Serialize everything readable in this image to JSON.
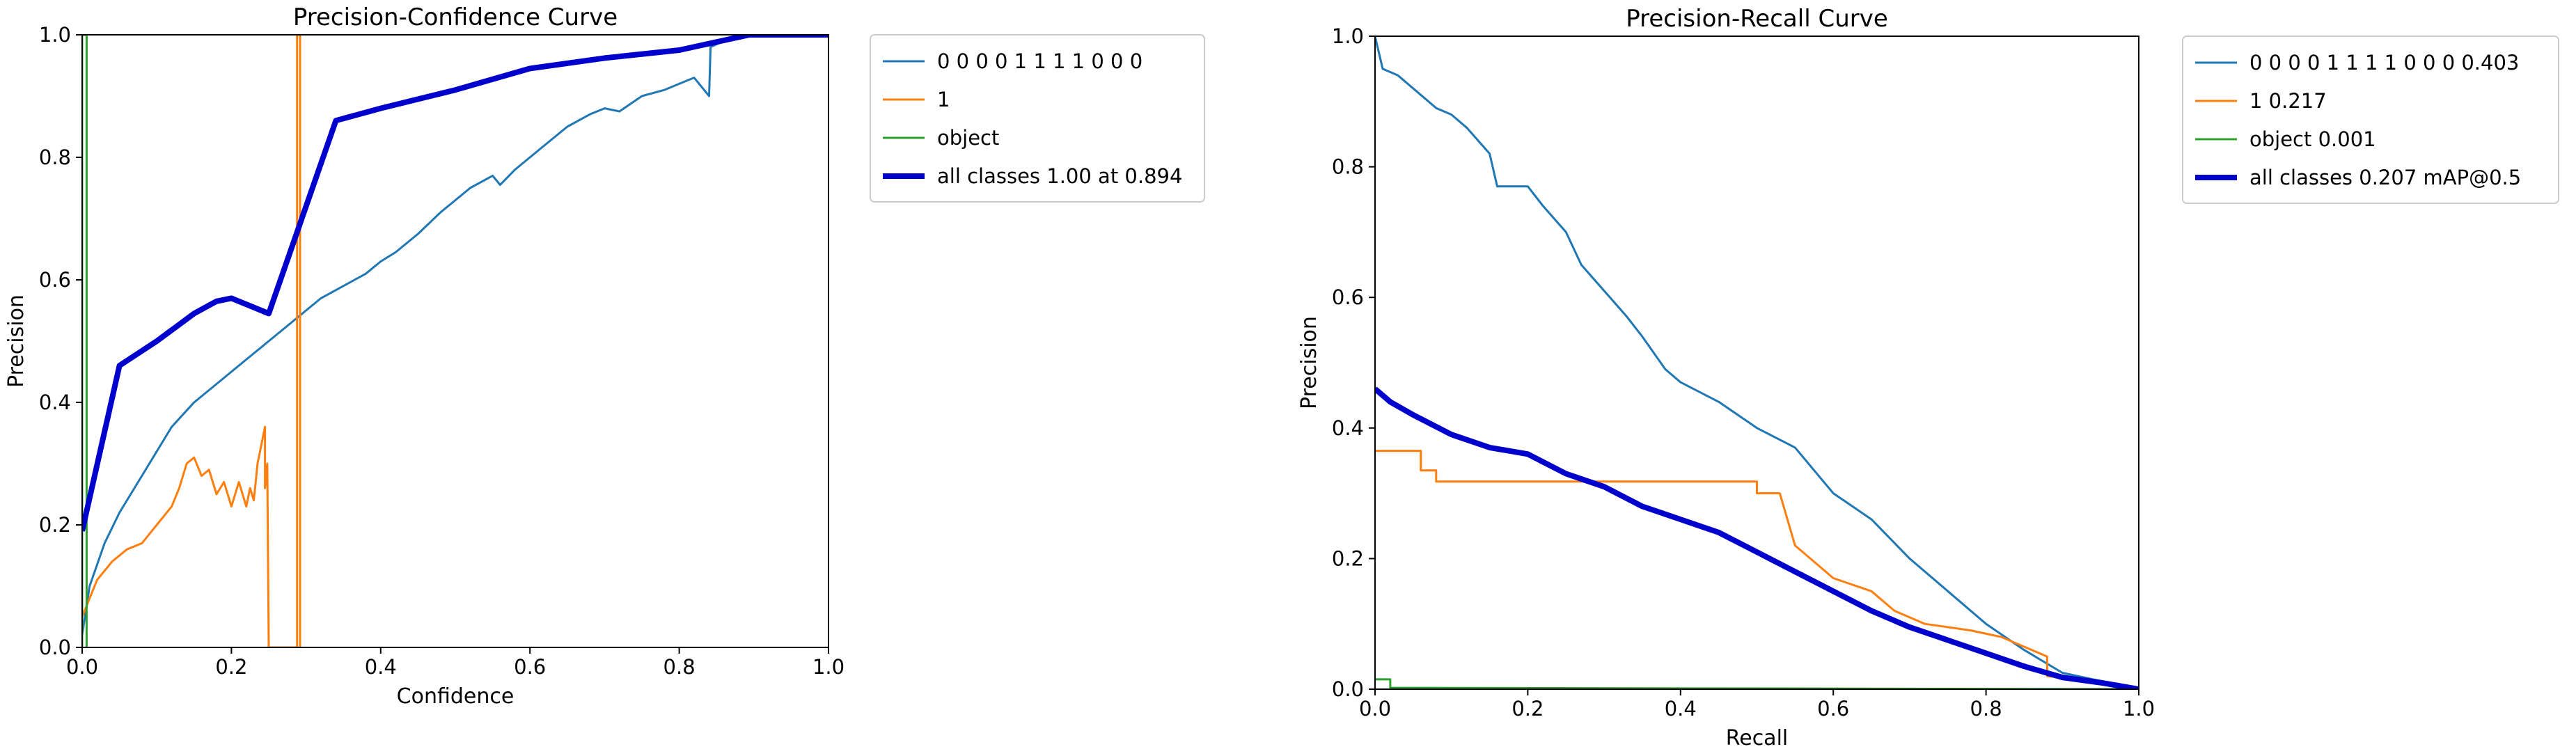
{
  "chart_data": [
    {
      "type": "line",
      "title": "Precision-Confidence Curve",
      "xlabel": "Confidence",
      "ylabel": "Precision",
      "xlim": [
        0,
        1
      ],
      "ylim": [
        0,
        1
      ],
      "xticks": [
        "0.0",
        "0.2",
        "0.4",
        "0.6",
        "0.8",
        "1.0"
      ],
      "yticks": [
        "0.0",
        "0.2",
        "0.4",
        "0.6",
        "0.8",
        "1.0"
      ],
      "legend_position": "outside-right",
      "series": [
        {
          "name": "0 0 0 0 1 1 1 1 0 0 0",
          "color": "#1f77b4",
          "width": 3,
          "points": [
            [
              0,
              0.02
            ],
            [
              0.01,
              0.1
            ],
            [
              0.03,
              0.17
            ],
            [
              0.05,
              0.22
            ],
            [
              0.08,
              0.28
            ],
            [
              0.1,
              0.32
            ],
            [
              0.12,
              0.36
            ],
            [
              0.15,
              0.4
            ],
            [
              0.18,
              0.43
            ],
            [
              0.2,
              0.45
            ],
            [
              0.22,
              0.47
            ],
            [
              0.25,
              0.5
            ],
            [
              0.28,
              0.53
            ],
            [
              0.3,
              0.55
            ],
            [
              0.32,
              0.57
            ],
            [
              0.35,
              0.59
            ],
            [
              0.38,
              0.61
            ],
            [
              0.4,
              0.63
            ],
            [
              0.42,
              0.645
            ],
            [
              0.45,
              0.675
            ],
            [
              0.48,
              0.71
            ],
            [
              0.5,
              0.73
            ],
            [
              0.52,
              0.75
            ],
            [
              0.55,
              0.77
            ],
            [
              0.56,
              0.755
            ],
            [
              0.58,
              0.78
            ],
            [
              0.6,
              0.8
            ],
            [
              0.62,
              0.82
            ],
            [
              0.65,
              0.85
            ],
            [
              0.68,
              0.87
            ],
            [
              0.7,
              0.88
            ],
            [
              0.72,
              0.875
            ],
            [
              0.75,
              0.9
            ],
            [
              0.78,
              0.91
            ],
            [
              0.8,
              0.92
            ],
            [
              0.82,
              0.93
            ],
            [
              0.84,
              0.9
            ],
            [
              0.842,
              0.98
            ],
            [
              0.86,
              0.99
            ],
            [
              0.89,
              1.0
            ],
            [
              1.0,
              1.0
            ]
          ]
        },
        {
          "name": "1",
          "color": "#ff7f0e",
          "width": 3,
          "points": [
            [
              0,
              0.05
            ],
            [
              0.01,
              0.08
            ],
            [
              0.02,
              0.11
            ],
            [
              0.04,
              0.14
            ],
            [
              0.06,
              0.16
            ],
            [
              0.08,
              0.17
            ],
            [
              0.1,
              0.2
            ],
            [
              0.12,
              0.23
            ],
            [
              0.13,
              0.26
            ],
            [
              0.14,
              0.3
            ],
            [
              0.15,
              0.31
            ],
            [
              0.16,
              0.28
            ],
            [
              0.17,
              0.29
            ],
            [
              0.18,
              0.25
            ],
            [
              0.19,
              0.27
            ],
            [
              0.2,
              0.23
            ],
            [
              0.21,
              0.27
            ],
            [
              0.22,
              0.23
            ],
            [
              0.225,
              0.26
            ],
            [
              0.23,
              0.24
            ],
            [
              0.235,
              0.3
            ],
            [
              0.24,
              0.33
            ],
            [
              0.245,
              0.36
            ],
            [
              0.245,
              0.26
            ],
            [
              0.248,
              0.3
            ],
            [
              0.25,
              0.0
            ],
            [
              0.288,
              0.0
            ],
            [
              0.288,
              1.0
            ],
            [
              0.292,
              1.0
            ],
            [
              0.292,
              0.0
            ]
          ]
        },
        {
          "name": "object",
          "color": "#2ca02c",
          "width": 3,
          "points": [
            [
              0,
              0.0
            ],
            [
              0,
              1.0
            ],
            [
              0.006,
              1.0
            ],
            [
              0.006,
              0.0
            ]
          ]
        },
        {
          "name": "all classes 1.00 at 0.894",
          "color": "#0000cc",
          "width": 8,
          "points": [
            [
              0,
              0.19
            ],
            [
              0.05,
              0.46
            ],
            [
              0.1,
              0.5
            ],
            [
              0.15,
              0.545
            ],
            [
              0.18,
              0.565
            ],
            [
              0.2,
              0.57
            ],
            [
              0.25,
              0.545
            ],
            [
              0.3,
              0.72
            ],
            [
              0.34,
              0.86
            ],
            [
              0.4,
              0.88
            ],
            [
              0.5,
              0.91
            ],
            [
              0.6,
              0.945
            ],
            [
              0.7,
              0.962
            ],
            [
              0.8,
              0.975
            ],
            [
              0.894,
              1.0
            ],
            [
              1.0,
              1.0
            ]
          ]
        }
      ]
    },
    {
      "type": "line",
      "title": "Precision-Recall Curve",
      "xlabel": "Recall",
      "ylabel": "Precision",
      "xlim": [
        0,
        1
      ],
      "ylim": [
        0,
        1
      ],
      "xticks": [
        "0.0",
        "0.2",
        "0.4",
        "0.6",
        "0.8",
        "1.0"
      ],
      "yticks": [
        "0.0",
        "0.2",
        "0.4",
        "0.6",
        "0.8",
        "1.0"
      ],
      "legend_position": "outside-right",
      "series": [
        {
          "name": "0 0 0 0 1 1 1 1 0 0 0 0.403",
          "color": "#1f77b4",
          "width": 3,
          "points": [
            [
              0,
              1.0
            ],
            [
              0.01,
              0.95
            ],
            [
              0.03,
              0.94
            ],
            [
              0.05,
              0.92
            ],
            [
              0.08,
              0.89
            ],
            [
              0.1,
              0.88
            ],
            [
              0.12,
              0.86
            ],
            [
              0.15,
              0.82
            ],
            [
              0.16,
              0.77
            ],
            [
              0.2,
              0.77
            ],
            [
              0.22,
              0.74
            ],
            [
              0.25,
              0.7
            ],
            [
              0.27,
              0.65
            ],
            [
              0.3,
              0.61
            ],
            [
              0.33,
              0.57
            ],
            [
              0.35,
              0.54
            ],
            [
              0.38,
              0.49
            ],
            [
              0.4,
              0.47
            ],
            [
              0.45,
              0.44
            ],
            [
              0.5,
              0.4
            ],
            [
              0.55,
              0.37
            ],
            [
              0.6,
              0.3
            ],
            [
              0.65,
              0.26
            ],
            [
              0.7,
              0.2
            ],
            [
              0.75,
              0.15
            ],
            [
              0.8,
              0.1
            ],
            [
              0.85,
              0.06
            ],
            [
              0.9,
              0.025
            ],
            [
              1.0,
              0.0
            ]
          ]
        },
        {
          "name": "1 0.217",
          "color": "#ff7f0e",
          "width": 3,
          "points": [
            [
              0,
              0.365
            ],
            [
              0.06,
              0.365
            ],
            [
              0.06,
              0.335
            ],
            [
              0.08,
              0.335
            ],
            [
              0.08,
              0.318
            ],
            [
              0.5,
              0.318
            ],
            [
              0.5,
              0.3
            ],
            [
              0.53,
              0.3
            ],
            [
              0.55,
              0.22
            ],
            [
              0.57,
              0.2
            ],
            [
              0.6,
              0.17
            ],
            [
              0.65,
              0.15
            ],
            [
              0.68,
              0.12
            ],
            [
              0.72,
              0.1
            ],
            [
              0.78,
              0.09
            ],
            [
              0.82,
              0.08
            ],
            [
              0.86,
              0.06
            ],
            [
              0.88,
              0.05
            ],
            [
              0.88,
              0.02
            ],
            [
              0.92,
              0.015
            ],
            [
              1.0,
              0.0
            ]
          ]
        },
        {
          "name": "object 0.001",
          "color": "#2ca02c",
          "width": 3,
          "points": [
            [
              0,
              0.015
            ],
            [
              0.02,
              0.015
            ],
            [
              0.02,
              0.002
            ],
            [
              1.0,
              0.0
            ]
          ]
        },
        {
          "name": "all classes 0.207 mAP@0.5",
          "color": "#0000cc",
          "width": 8,
          "points": [
            [
              0,
              0.46
            ],
            [
              0.02,
              0.44
            ],
            [
              0.05,
              0.42
            ],
            [
              0.1,
              0.39
            ],
            [
              0.15,
              0.37
            ],
            [
              0.2,
              0.36
            ],
            [
              0.25,
              0.33
            ],
            [
              0.3,
              0.31
            ],
            [
              0.35,
              0.28
            ],
            [
              0.4,
              0.26
            ],
            [
              0.45,
              0.24
            ],
            [
              0.5,
              0.21
            ],
            [
              0.55,
              0.18
            ],
            [
              0.6,
              0.15
            ],
            [
              0.65,
              0.12
            ],
            [
              0.7,
              0.095
            ],
            [
              0.75,
              0.075
            ],
            [
              0.8,
              0.055
            ],
            [
              0.85,
              0.035
            ],
            [
              0.9,
              0.018
            ],
            [
              0.95,
              0.01
            ],
            [
              1.0,
              0.0
            ]
          ]
        }
      ]
    }
  ]
}
